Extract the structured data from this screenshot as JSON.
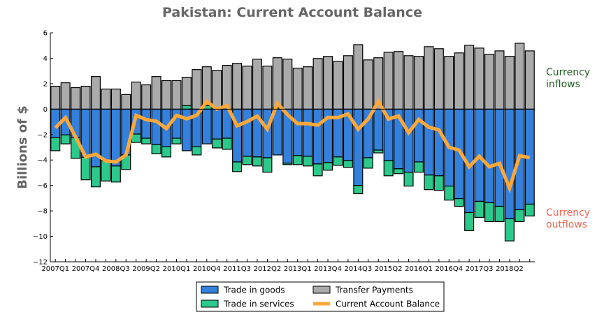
{
  "chart_data": {
    "type": "bar",
    "stacked": true,
    "title": "Pakistan: Current Account Balance",
    "xlabel": "",
    "ylabel": "Billions of $",
    "ylim": [
      -12,
      6
    ],
    "yticks": [
      -12,
      -10,
      -8,
      -6,
      -4,
      -2,
      0,
      2,
      4,
      6
    ],
    "grid": false,
    "legend_placement": "bottom-center",
    "categories": [
      "2007Q1",
      "2007Q2",
      "2007Q3",
      "2007Q4",
      "2008Q1",
      "2008Q2",
      "2008Q3",
      "2008Q4",
      "2009Q1",
      "2009Q2",
      "2009Q3",
      "2009Q4",
      "2010Q1",
      "2010Q2",
      "2010Q3",
      "2010Q4",
      "2011Q1",
      "2011Q2",
      "2011Q3",
      "2011Q4",
      "2012Q1",
      "2012Q2",
      "2012Q3",
      "2012Q4",
      "2013Q1",
      "2013Q2",
      "2013Q3",
      "2013Q4",
      "2014Q1",
      "2014Q2",
      "2014Q3",
      "2014Q4",
      "2015Q1",
      "2015Q2",
      "2015Q3",
      "2015Q4",
      "2016Q1",
      "2016Q2",
      "2016Q3",
      "2016Q4",
      "2017Q1",
      "2017Q2",
      "2017Q3",
      "2017Q4",
      "2018Q1",
      "2018Q2",
      "2018Q3",
      "2018Q4"
    ],
    "tick_labels": [
      "2007Q1",
      "2007Q4",
      "2008Q3",
      "2009Q2",
      "2010Q1",
      "2010Q4",
      "2011Q3",
      "2012Q2",
      "2013Q1",
      "2013Q4",
      "2014Q3",
      "2015Q2",
      "2016Q1",
      "2016Q4",
      "2017Q3",
      "2018Q2"
    ],
    "series": [
      {
        "name": "Trade in goods",
        "kind": "bar",
        "color": "#3380dd",
        "values": [
          -2.24,
          -2.02,
          -2.24,
          -3.78,
          -4.53,
          -4.07,
          -4.47,
          -3.6,
          -1.96,
          -2.29,
          -2.78,
          -2.95,
          -2.29,
          -3.27,
          -2.95,
          -2.73,
          -2.35,
          -2.29,
          -4.15,
          -3.71,
          -3.76,
          -3.82,
          -3.6,
          -4.25,
          -3.65,
          -3.71,
          -4.31,
          -4.2,
          -3.76,
          -4.04,
          -6.0,
          -3.82,
          -3.22,
          -4.04,
          -4.69,
          -4.96,
          -4.15,
          -5.18,
          -5.24,
          -6.05,
          -7.04,
          -8.13,
          -7.25,
          -7.36,
          -7.64,
          -8.62,
          -7.91,
          -7.47
        ]
      },
      {
        "name": "Trade in services",
        "kind": "bar",
        "color": "#2bc98b",
        "values": [
          -1.03,
          -0.71,
          -1.63,
          -1.78,
          -1.58,
          -1.58,
          -1.26,
          -1.15,
          -0.66,
          -0.44,
          -0.73,
          -0.81,
          -0.44,
          0.27,
          -0.65,
          0.27,
          -0.7,
          -0.87,
          -0.76,
          -0.65,
          -0.71,
          -1.14,
          0.1,
          -0.11,
          -0.71,
          -0.76,
          -0.93,
          -0.6,
          -0.66,
          -0.54,
          -0.65,
          -0.82,
          -0.22,
          -1.2,
          -0.38,
          -1.09,
          -0.81,
          -1.15,
          -1.14,
          -1.1,
          -0.6,
          -1.42,
          -1.26,
          -1.48,
          -1.2,
          -1.74,
          -0.93,
          -0.93
        ]
      },
      {
        "name": "Transfer Payments",
        "kind": "bar",
        "color": "#aaaaaa",
        "values": [
          1.8,
          2.07,
          1.69,
          1.8,
          2.56,
          1.58,
          1.58,
          1.15,
          2.13,
          1.91,
          2.56,
          2.24,
          2.24,
          2.24,
          3.11,
          3.06,
          3.05,
          3.44,
          3.6,
          3.38,
          3.93,
          3.38,
          3.94,
          3.93,
          3.22,
          3.33,
          3.98,
          4.15,
          3.76,
          4.2,
          5.07,
          3.87,
          4.04,
          4.47,
          4.53,
          4.2,
          4.15,
          4.91,
          4.75,
          4.15,
          4.42,
          5.02,
          4.8,
          4.31,
          4.58,
          4.15,
          5.18,
          4.58
        ]
      },
      {
        "name": "Current Account Balance",
        "kind": "line",
        "color": "#ffa83a",
        "values": [
          -1.47,
          -0.66,
          -2.18,
          -3.76,
          -3.55,
          -4.07,
          -4.15,
          -3.6,
          -0.49,
          -0.82,
          -0.95,
          -1.52,
          -0.49,
          -0.76,
          -0.49,
          0.6,
          0.0,
          0.28,
          -1.31,
          -0.98,
          -0.54,
          -1.58,
          0.44,
          -0.43,
          -1.14,
          -1.14,
          -1.26,
          -0.65,
          -0.66,
          -0.38,
          -1.58,
          -0.77,
          0.6,
          -0.77,
          -0.54,
          -1.85,
          -0.81,
          -1.42,
          -1.63,
          -3.0,
          -3.22,
          -4.53,
          -3.71,
          -4.53,
          -4.26,
          -6.21,
          -3.66,
          -3.82
        ]
      }
    ],
    "annotations": [
      {
        "text": "Currency\ninflows",
        "color": "#1e5e1e"
      },
      {
        "text": "Currency\noutflows",
        "color": "#f26552"
      }
    ]
  }
}
